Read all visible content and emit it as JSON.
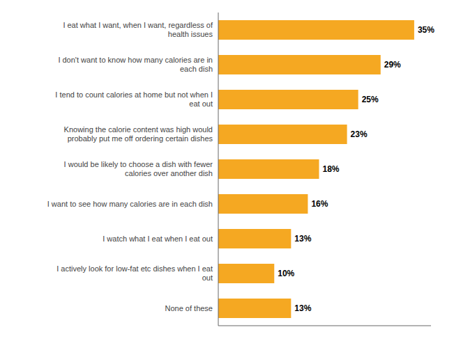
{
  "chart_data": {
    "type": "bar",
    "orientation": "horizontal",
    "categories": [
      "None of these",
      "I actively look for low-fat etc dishes when I eat\nout",
      "I watch what I eat when I eat out",
      "I want to see how many calories are in each dish",
      "I would be likely to choose a dish with fewer\ncalories over another dish",
      "Knowing the calorie content was high would\nprobably put me off ordering certain dishes",
      "I tend to count calories at home but not when I\neat out",
      "I don't want to know how many calories are in\neach dish",
      "I eat what I want, when I want, regardless of\nhealth issues"
    ],
    "values": [
      13,
      10,
      13,
      16,
      18,
      23,
      25,
      29,
      35
    ],
    "value_labels": [
      "13%",
      "10%",
      "13%",
      "16%",
      "18%",
      "23%",
      "25%",
      "29%",
      "35%"
    ],
    "data_labels": true,
    "color": "#F5A822",
    "xlim": [
      0,
      38
    ],
    "tick_labels": "y",
    "grid": false
  }
}
